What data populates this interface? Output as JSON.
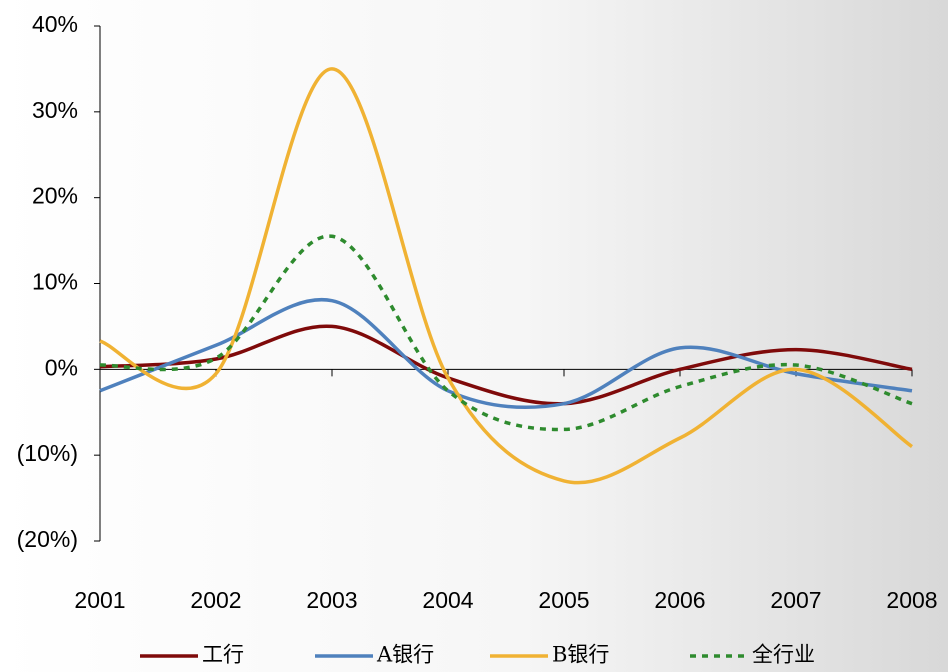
{
  "chart_data": {
    "type": "line",
    "x": [
      2001,
      2002,
      2003,
      2004,
      2005,
      2006,
      2007,
      2008
    ],
    "xlim": [
      2001,
      2008
    ],
    "xticks": [
      2001,
      2002,
      2003,
      2004,
      2005,
      2006,
      2007,
      2008
    ],
    "ylim": [
      -20,
      40
    ],
    "yticks": [
      {
        "value": -20,
        "label": "(20%)"
      },
      {
        "value": -10,
        "label": "(10%)"
      },
      {
        "value": 0,
        "label": "0%"
      },
      {
        "value": 10,
        "label": "10%"
      },
      {
        "value": 20,
        "label": "20%"
      },
      {
        "value": 30,
        "label": "30%"
      },
      {
        "value": 40,
        "label": "40%"
      }
    ],
    "legend": "bottom",
    "series": [
      {
        "name": "工行",
        "color": "#7f0a0a",
        "values": [
          0.3,
          1.2,
          5,
          -1,
          -4,
          0,
          2.3,
          0
        ]
      },
      {
        "name": "A银行",
        "color": "#4f81bd",
        "values": [
          -2.5,
          2.8,
          8,
          -2.5,
          -4,
          2.5,
          -0.5,
          -2.5
        ]
      },
      {
        "name": "B银行",
        "color": "#f0b233",
        "values": [
          3.3,
          -0.5,
          35,
          -1,
          -13,
          -8,
          0,
          -9
        ]
      },
      {
        "name": "全行业",
        "color": "#2e8b2e",
        "dashed": true,
        "values": [
          0.5,
          1.3,
          15.5,
          -2.5,
          -7,
          -2,
          0.5,
          -4
        ]
      }
    ]
  }
}
